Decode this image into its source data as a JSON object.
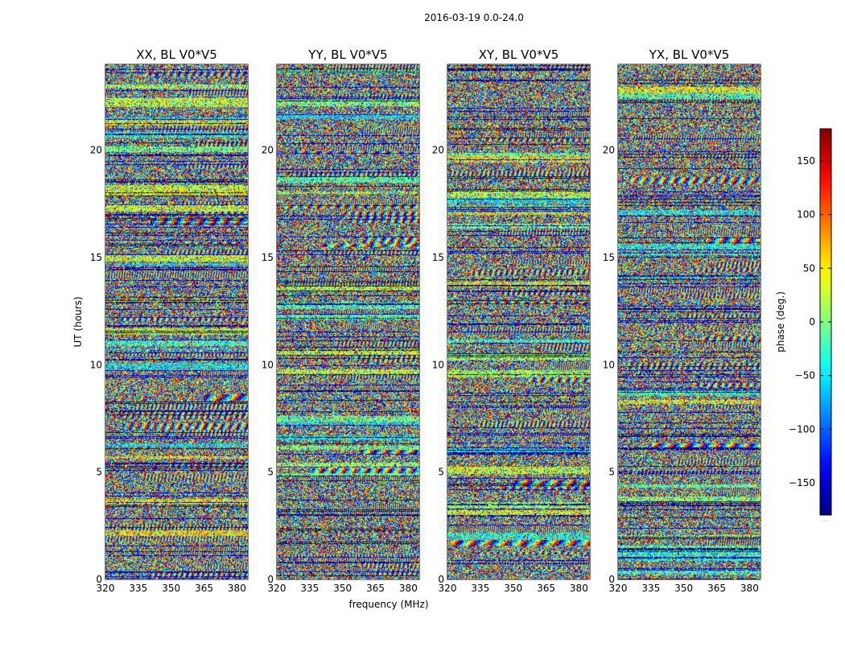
{
  "figure_title": "2016-03-19 0.0-24.0",
  "chart_data": {
    "type": "heatmap",
    "title": "2016-03-19 0.0-24.0",
    "xlabel": "frequency (MHz)",
    "ylabel": "UT (hours)",
    "xlim": [
      320,
      385
    ],
    "ylim": [
      0,
      24
    ],
    "xticks": [
      320,
      335,
      350,
      365,
      380
    ],
    "yticks": [
      0,
      5,
      10,
      15,
      20
    ],
    "xtick_labels": [
      "320",
      "335",
      "350",
      "365",
      "380"
    ],
    "ytick_labels": [
      "0",
      "5",
      "10",
      "15",
      "20"
    ],
    "panels": [
      {
        "name": "XX",
        "title": "XX, BL V0*V5",
        "seed": 11
      },
      {
        "name": "YY",
        "title": "YY, BL V0*V5",
        "seed": 23
      },
      {
        "name": "XY",
        "title": "XY, BL V0*V5",
        "seed": 37
      },
      {
        "name": "YX",
        "title": "YX, BL V0*V5",
        "seed": 53
      }
    ],
    "colorbar": {
      "label": "phase (deg.)",
      "range": [
        -180,
        180
      ],
      "colormap": "jet",
      "ticks": [
        -150,
        -100,
        -50,
        0,
        50,
        100,
        150
      ],
      "tick_labels": [
        "−150",
        "−100",
        "−50",
        "0",
        "50",
        "100",
        "150"
      ],
      "extra_label": "....."
    }
  }
}
